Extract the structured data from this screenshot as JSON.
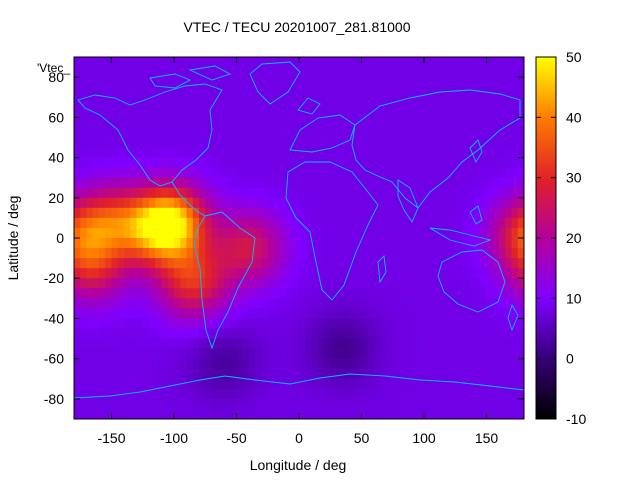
{
  "chart_data": {
    "type": "heatmap",
    "title": "VTEC / TECU 20201007_281.81000",
    "xlabel": "Longitude / deg",
    "ylabel": "Latitude / deg",
    "legend_label": "'Vtec_",
    "xlim": [
      -180,
      180
    ],
    "ylim": [
      -90,
      90
    ],
    "x_ticks": [
      -150,
      -100,
      -50,
      0,
      50,
      100,
      150
    ],
    "y_ticks": [
      80,
      60,
      40,
      20,
      0,
      -20,
      -40,
      -60,
      -80
    ],
    "colorbar": {
      "range": [
        -10,
        50
      ],
      "ticks": [
        50,
        40,
        30,
        20,
        10,
        0,
        -10
      ],
      "palette": [
        "#000000",
        "#3a0080",
        "#7f00ff",
        "#b4009c",
        "#e0202a",
        "#ff7a00",
        "#ffff00"
      ]
    },
    "background_value": 8,
    "field_blobs": [
      {
        "lon": -100,
        "lat": 8,
        "value": 38
      },
      {
        "lon": -115,
        "lat": 4,
        "value": 30
      },
      {
        "lon": -150,
        "lat": 8,
        "value": 28
      },
      {
        "lon": -165,
        "lat": -15,
        "value": 25
      },
      {
        "lon": -85,
        "lat": -22,
        "value": 30
      },
      {
        "lon": -40,
        "lat": -5,
        "value": 26
      },
      {
        "lon": 180,
        "lat": 2,
        "value": 26
      },
      {
        "lon": -60,
        "lat": -62,
        "value": 3
      },
      {
        "lon": 35,
        "lat": -55,
        "value": 2
      }
    ],
    "grid": false,
    "overlay": "coastlines"
  }
}
